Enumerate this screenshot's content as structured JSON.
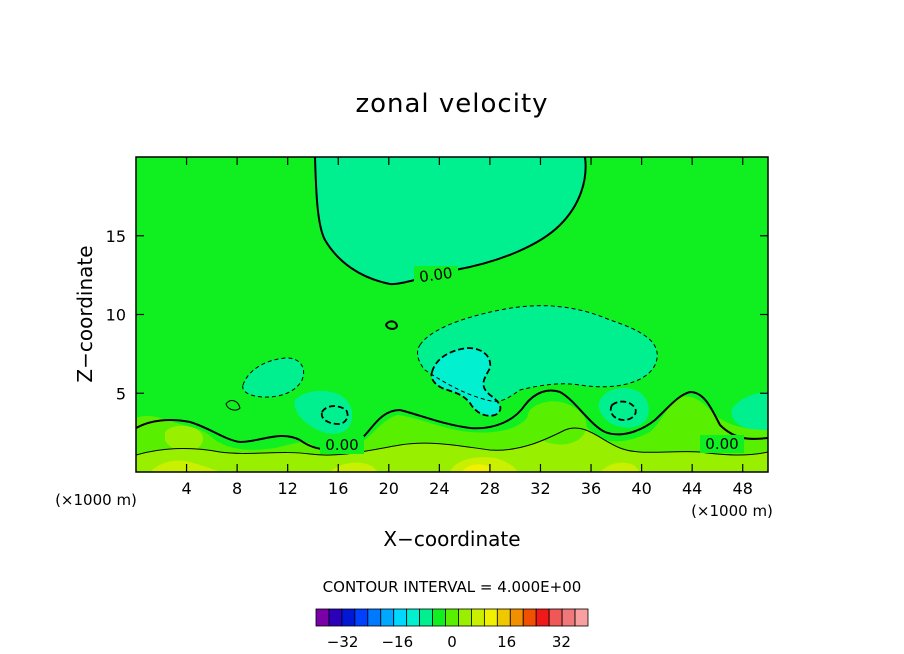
{
  "chart_data": {
    "type": "heatmap",
    "title": "zonal velocity",
    "xlabel": "X−coordinate",
    "ylabel": "Z−coordinate",
    "x_unit": "(×1000 m)",
    "x_range": [
      0,
      50
    ],
    "y_range": [
      0,
      20
    ],
    "x_ticks": [
      4,
      8,
      12,
      16,
      20,
      24,
      28,
      32,
      36,
      40,
      44,
      48
    ],
    "y_ticks": [
      5,
      10,
      15
    ],
    "contour_interval_label": "CONTOUR INTERVAL = 4.000E+00",
    "zero_contour_label": "0.00",
    "colorbar": {
      "levels": [
        -36,
        -32,
        -28,
        -24,
        -20,
        -16,
        -12,
        -8,
        -4,
        0,
        4,
        8,
        12,
        16,
        20,
        24,
        28,
        32,
        36
      ],
      "tick_labels": [
        "−32",
        "−16",
        "0",
        "16",
        "32"
      ],
      "tick_values": [
        -32,
        -16,
        0,
        16,
        32
      ],
      "colors": [
        "#7a00a8",
        "#2a00b8",
        "#0018d6",
        "#0040ff",
        "#0078ff",
        "#00a8ff",
        "#00d8ff",
        "#00f0d0",
        "#00f090",
        "#10f020",
        "#58f000",
        "#98f000",
        "#c8f000",
        "#f0f000",
        "#f0c800",
        "#f09000",
        "#f05000",
        "#f01818",
        "#f05858",
        "#f07878",
        "#f8a0a0"
      ]
    },
    "field_colors": {
      "minus8": "#00f0d0",
      "minus4": "#00f090",
      "zero_band": "#10f020",
      "plus4": "#58f000",
      "plus8": "#98f000",
      "plus12": "#c8f000",
      "plus16": "#f0f000"
    }
  }
}
